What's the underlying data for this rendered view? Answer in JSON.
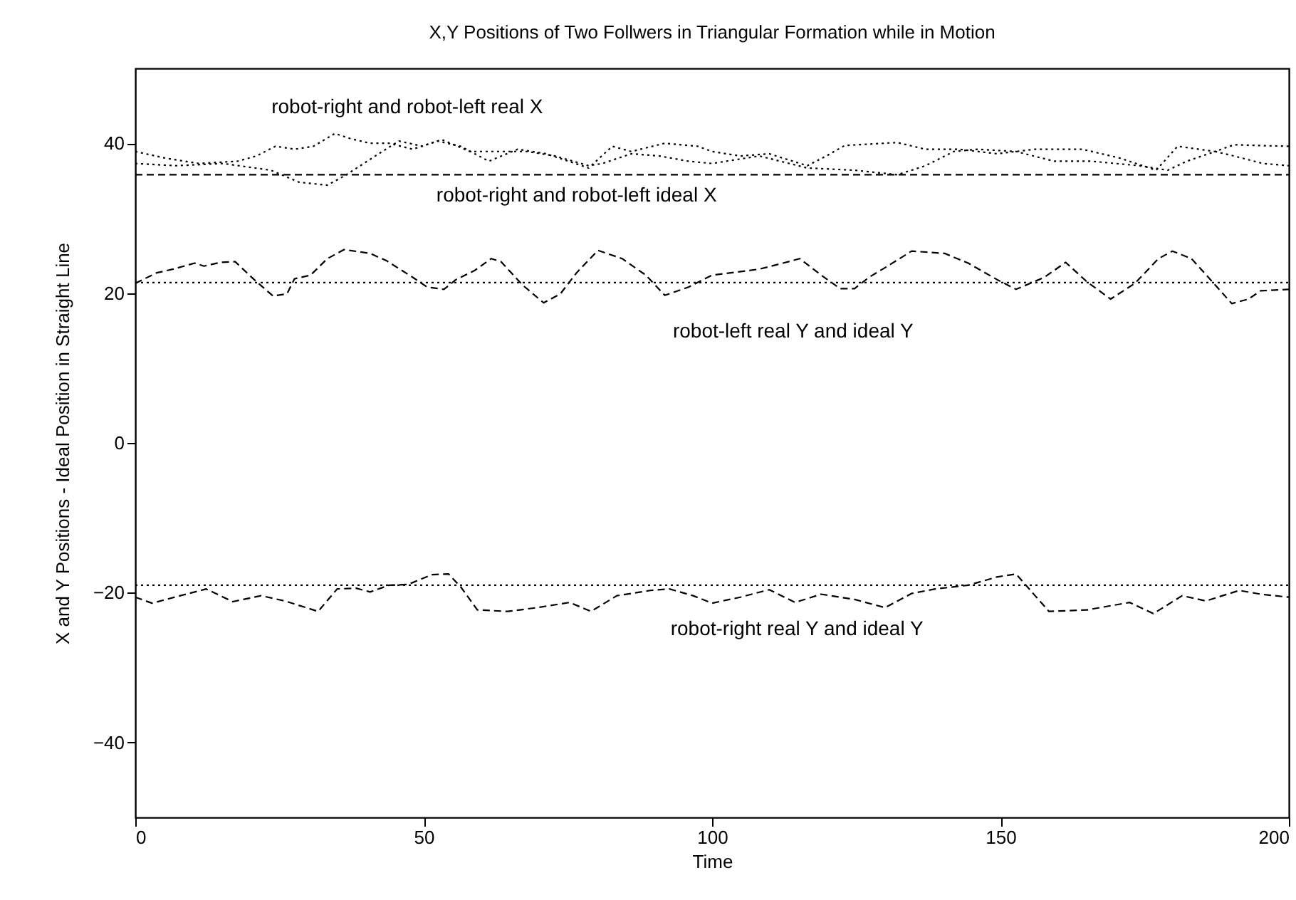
{
  "chart_data": {
    "type": "line",
    "title": "X,Y Positions of Two Follwers in Triangular Formation while in Motion",
    "xlabel": "Time",
    "ylabel": "X and Y Positions - Ideal Position in Straight Line",
    "xlim": [
      0,
      200
    ],
    "xticks": [
      0,
      50,
      100,
      150,
      200
    ],
    "ylim": [
      -50,
      50
    ],
    "yticks": [
      -40,
      -20,
      0,
      20,
      40
    ],
    "grid": false,
    "marker": "none",
    "series": [
      {
        "color": "#000000",
        "line_style": "dotted",
        "x": [
          0,
          5.3,
          11,
          17.7,
          21,
          24.3,
          27.6,
          30.9,
          34.6,
          37.4,
          40.7,
          44,
          48.1,
          52.3,
          56.4,
          61.3,
          66.3,
          71.2,
          78.6,
          82.7,
          86,
          91.8,
          97.5,
          100,
          104.9,
          109.9,
          116.5,
          119.8,
          123,
          132.1,
          137,
          142.8,
          149.4,
          156,
          164.2,
          170.8,
          177,
          180.7,
          187.2,
          190.5,
          194.6,
          200
        ],
        "values": [
          38.9,
          38.0,
          37.3,
          37.6,
          38.3,
          39.6,
          39.2,
          39.6,
          41.3,
          40.6,
          40.0,
          40.0,
          39.2,
          40.3,
          39.6,
          37.6,
          39.2,
          38.6,
          36.7,
          39.6,
          38.9,
          40.0,
          39.6,
          38.9,
          38.3,
          38.6,
          37.0,
          38.3,
          39.7,
          40.1,
          39.2,
          39.2,
          38.6,
          39.2,
          39.2,
          38.0,
          36.4,
          39.6,
          38.9,
          39.8,
          39.7,
          39.6
        ]
      },
      {
        "color": "#000000",
        "line_style": "dotted",
        "x": [
          0,
          7,
          15.2,
          23.5,
          28.4,
          33.3,
          36.6,
          41.6,
          45.7,
          49.8,
          53.1,
          58,
          67.9,
          72.8,
          78.6,
          81,
          86,
          90.9,
          95.9,
          100,
          108.2,
          116.5,
          124.7,
          132.1,
          137,
          141.9,
          146.1,
          152.7,
          159.3,
          165.8,
          174.1,
          179,
          182.3,
          187.2,
          190.5,
          195.5,
          200
        ],
        "values": [
          37.3,
          37.0,
          37.3,
          36.4,
          34.8,
          34.4,
          35.8,
          38.3,
          40.3,
          39.6,
          40.5,
          38.9,
          38.9,
          38.3,
          37.0,
          37.3,
          38.6,
          38.3,
          37.6,
          37.3,
          38.3,
          36.7,
          36.4,
          35.8,
          37.0,
          38.9,
          39.2,
          38.9,
          37.6,
          37.6,
          37.0,
          36.4,
          37.6,
          38.9,
          38.3,
          37.3,
          37.0
        ]
      },
      {
        "color": "#000000",
        "line_style": "dashed",
        "x": [
          0,
          200
        ],
        "values": [
          35.8,
          35.8
        ]
      },
      {
        "color": "#000000",
        "line_style": "dashed",
        "x": [
          0,
          3.7,
          6.6,
          10.3,
          11.9,
          14.8,
          17.3,
          20.6,
          23.9,
          26.3,
          27.6,
          30.4,
          33.3,
          36.2,
          40.7,
          43.6,
          48.1,
          50.6,
          53.5,
          55.6,
          58.8,
          61.7,
          63.4,
          67.1,
          70.8,
          73.7,
          76.5,
          80.2,
          84.4,
          88.5,
          91.8,
          95.9,
          100,
          103.3,
          108.2,
          112.3,
          115.2,
          118.9,
          122.2,
          124.7,
          127.2,
          130,
          134.6,
          140.3,
          144.4,
          149.4,
          152.7,
          157.6,
          161.3,
          165,
          169.1,
          173.3,
          177.4,
          179.8,
          183.1,
          186.4,
          190.1,
          193,
          195.1,
          200
        ],
        "values": [
          21.3,
          22.7,
          23.2,
          24.0,
          23.6,
          24.1,
          24.2,
          21.8,
          19.6,
          19.9,
          21.9,
          22.4,
          24.6,
          25.8,
          25.3,
          24.3,
          22.1,
          20.8,
          20.5,
          21.8,
          23.0,
          24.6,
          24.2,
          21.1,
          18.7,
          19.9,
          22.7,
          25.7,
          24.6,
          22.4,
          19.7,
          20.8,
          22.4,
          22.7,
          23.2,
          24.0,
          24.6,
          22.4,
          20.6,
          20.6,
          22.1,
          23.4,
          25.6,
          25.3,
          24.0,
          21.8,
          20.5,
          22.1,
          24.1,
          21.5,
          19.2,
          21.3,
          24.6,
          25.6,
          24.6,
          21.8,
          18.6,
          19.2,
          20.3,
          20.5
        ]
      },
      {
        "color": "#000000",
        "line_style": "dotted",
        "x": [
          0,
          200
        ],
        "values": [
          21.4,
          21.4
        ]
      },
      {
        "color": "#000000",
        "line_style": "dashed",
        "x": [
          0,
          2.9,
          7.8,
          12.3,
          16.9,
          21.8,
          25.9,
          31.7,
          35,
          38.3,
          40.7,
          44,
          47.3,
          51.4,
          54.3,
          56.4,
          59.3,
          64.6,
          69.6,
          75.3,
          79,
          83.5,
          89.3,
          92.6,
          96.7,
          100,
          104.9,
          109.9,
          114.4,
          118.9,
          124.7,
          130,
          134.6,
          138.7,
          144.4,
          149.4,
          152.7,
          156,
          158.4,
          165,
          172.4,
          176.5,
          181.5,
          185.6,
          191.4,
          195.1,
          200
        ],
        "values": [
          -20.6,
          -21.4,
          -20.4,
          -19.5,
          -21.2,
          -20.4,
          -21.1,
          -22.5,
          -19.5,
          -19.4,
          -19.9,
          -19.0,
          -18.9,
          -17.6,
          -17.5,
          -19.2,
          -22.3,
          -22.5,
          -22.0,
          -21.3,
          -22.5,
          -20.4,
          -19.7,
          -19.5,
          -20.4,
          -21.4,
          -20.6,
          -19.6,
          -21.3,
          -20.2,
          -20.9,
          -22.0,
          -20.1,
          -19.5,
          -19.0,
          -17.9,
          -17.5,
          -20.4,
          -22.5,
          -22.3,
          -21.3,
          -22.8,
          -20.4,
          -21.1,
          -19.7,
          -20.2,
          -20.6
        ]
      },
      {
        "color": "#000000",
        "line_style": "dotted",
        "x": [
          0,
          200
        ],
        "values": [
          -19.0,
          -19.0
        ]
      }
    ],
    "annotations": [
      "robot-right and robot-left real X",
      "robot-right and robot-left ideal X",
      "robot-left real Y and ideal Y",
      "robot-right real Y and ideal Y"
    ]
  }
}
